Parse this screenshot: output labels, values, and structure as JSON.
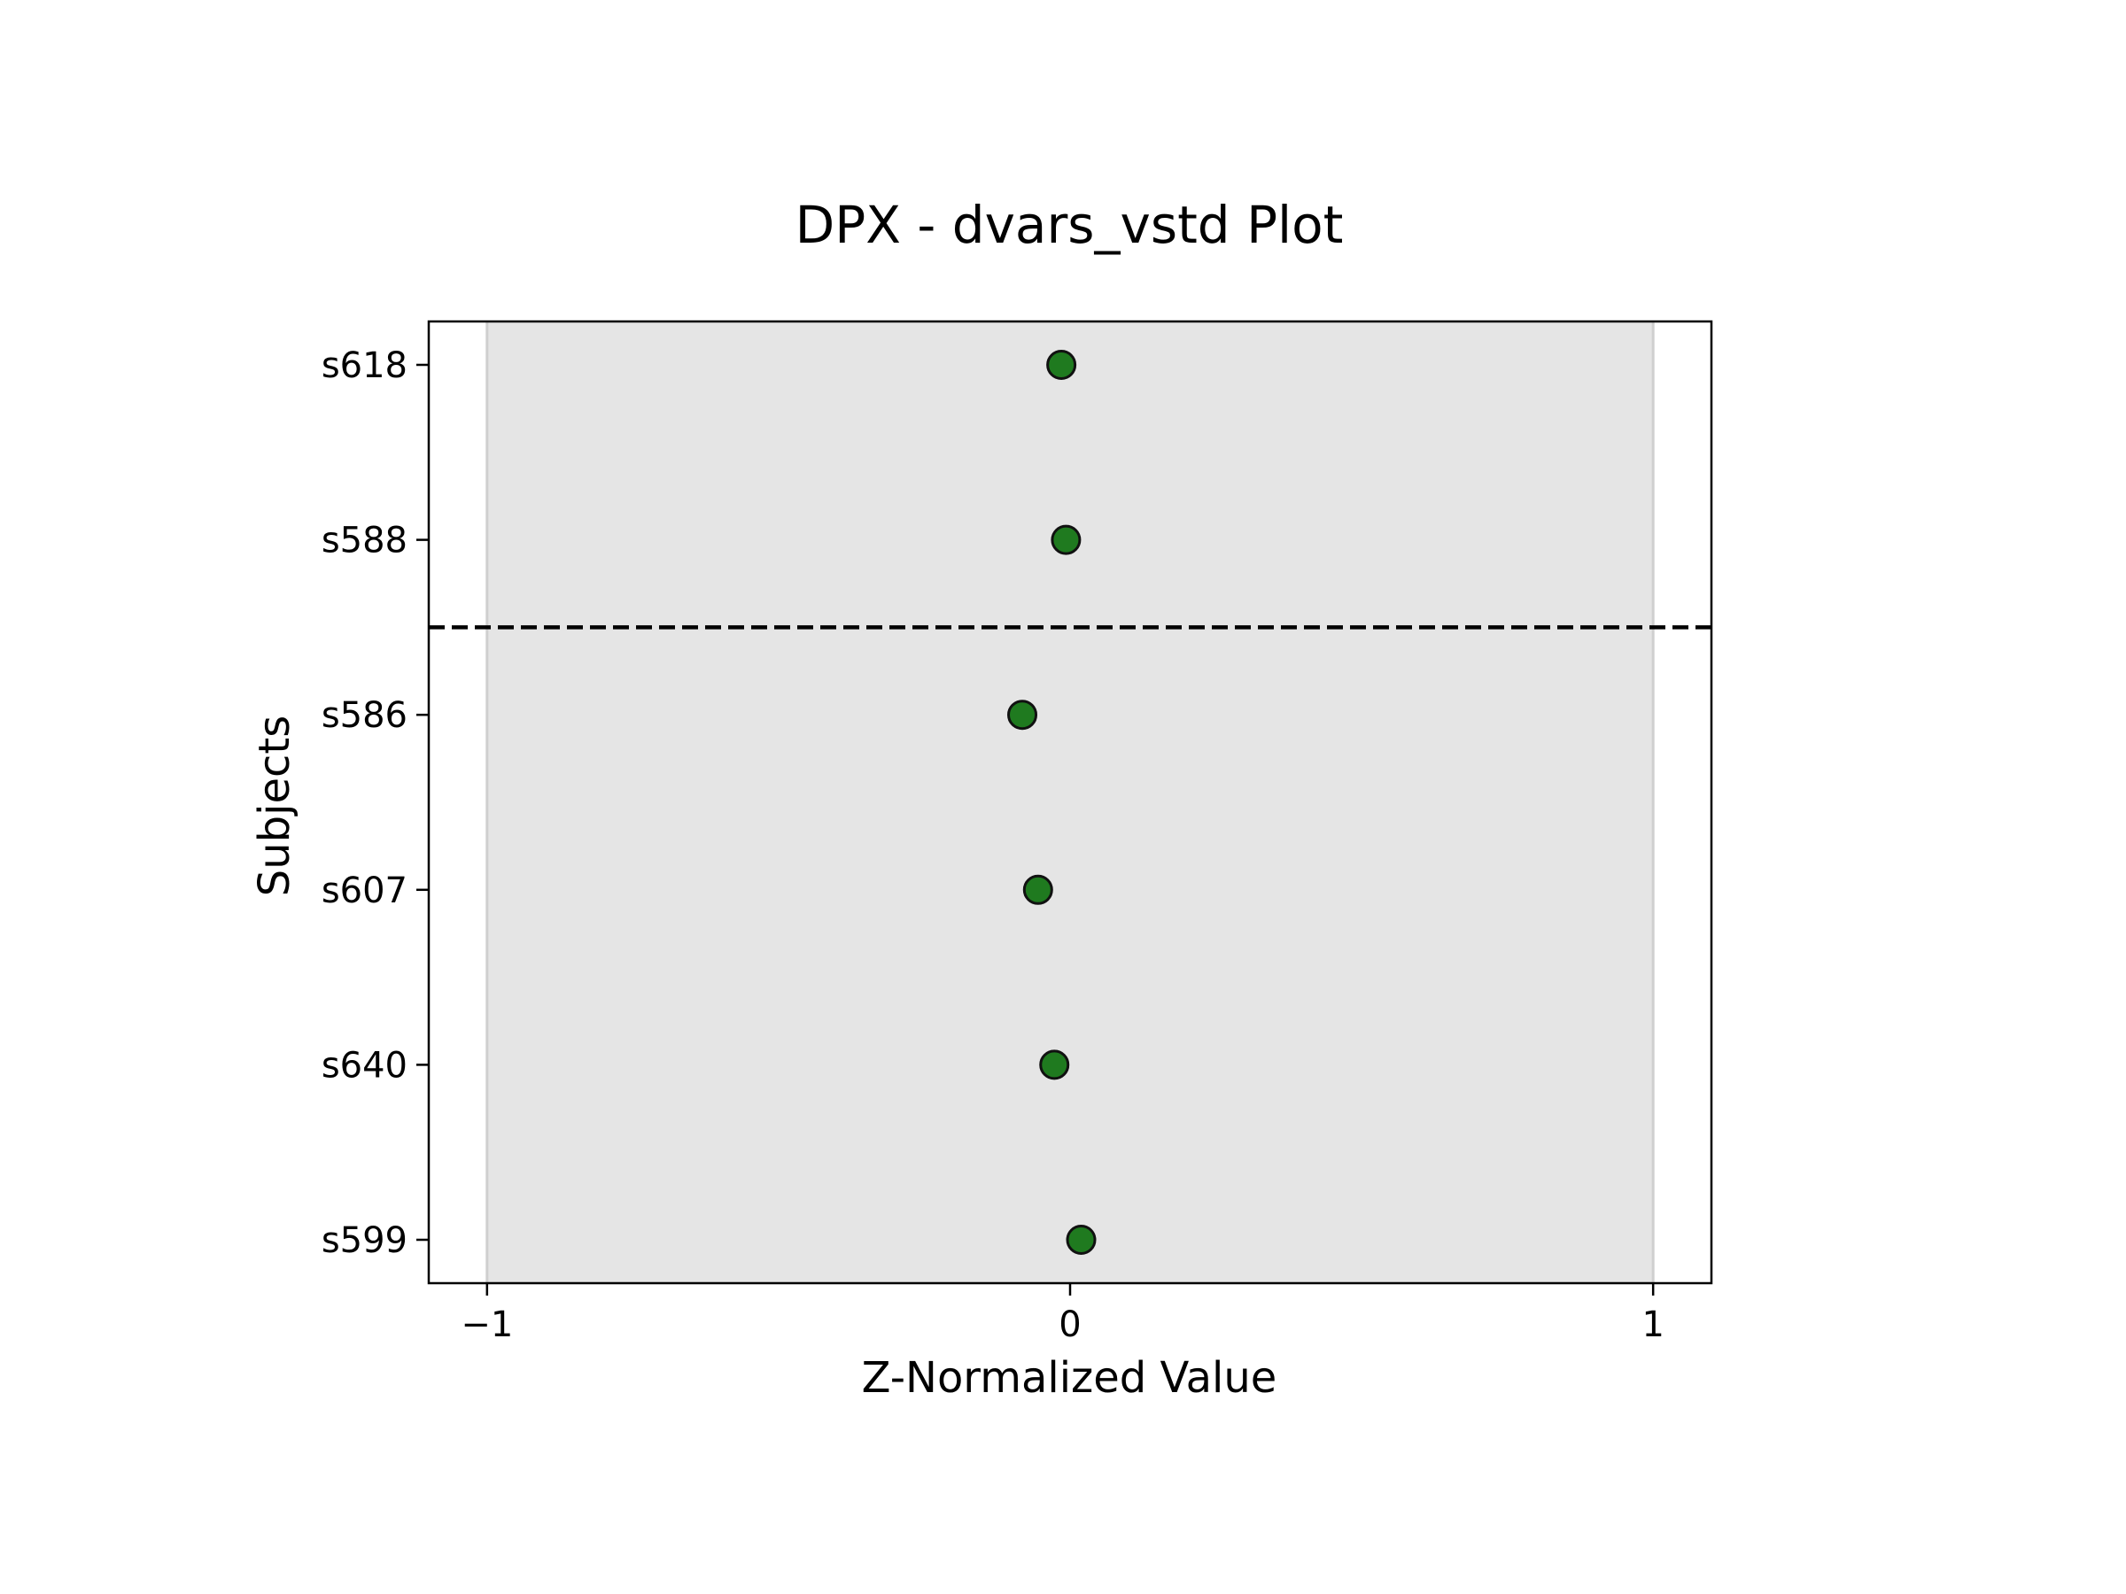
{
  "chart_data": {
    "type": "scatter",
    "title": "DPX - dvars_vstd Plot",
    "xlabel": "Z-Normalized Value",
    "ylabel": "Subjects",
    "xlim": [
      -1.1,
      1.1
    ],
    "x_ticks": [
      -1,
      0,
      1
    ],
    "x_tick_labels": [
      "−1",
      "0",
      "1"
    ],
    "categories": [
      "s618",
      "s588",
      "s586",
      "s607",
      "s640",
      "s599"
    ],
    "values": [
      -0.015,
      -0.007,
      -0.082,
      -0.055,
      -0.027,
      0.019
    ],
    "shaded_band": [
      -1,
      1
    ],
    "divider_after_index": 1,
    "grid": false,
    "colors": {
      "marker_fill": "#1f7a1f",
      "marker_edge": "#111111",
      "band_fill": "#e5e5e5",
      "band_edge": "#cfcfcf",
      "divider": "#000000"
    }
  }
}
